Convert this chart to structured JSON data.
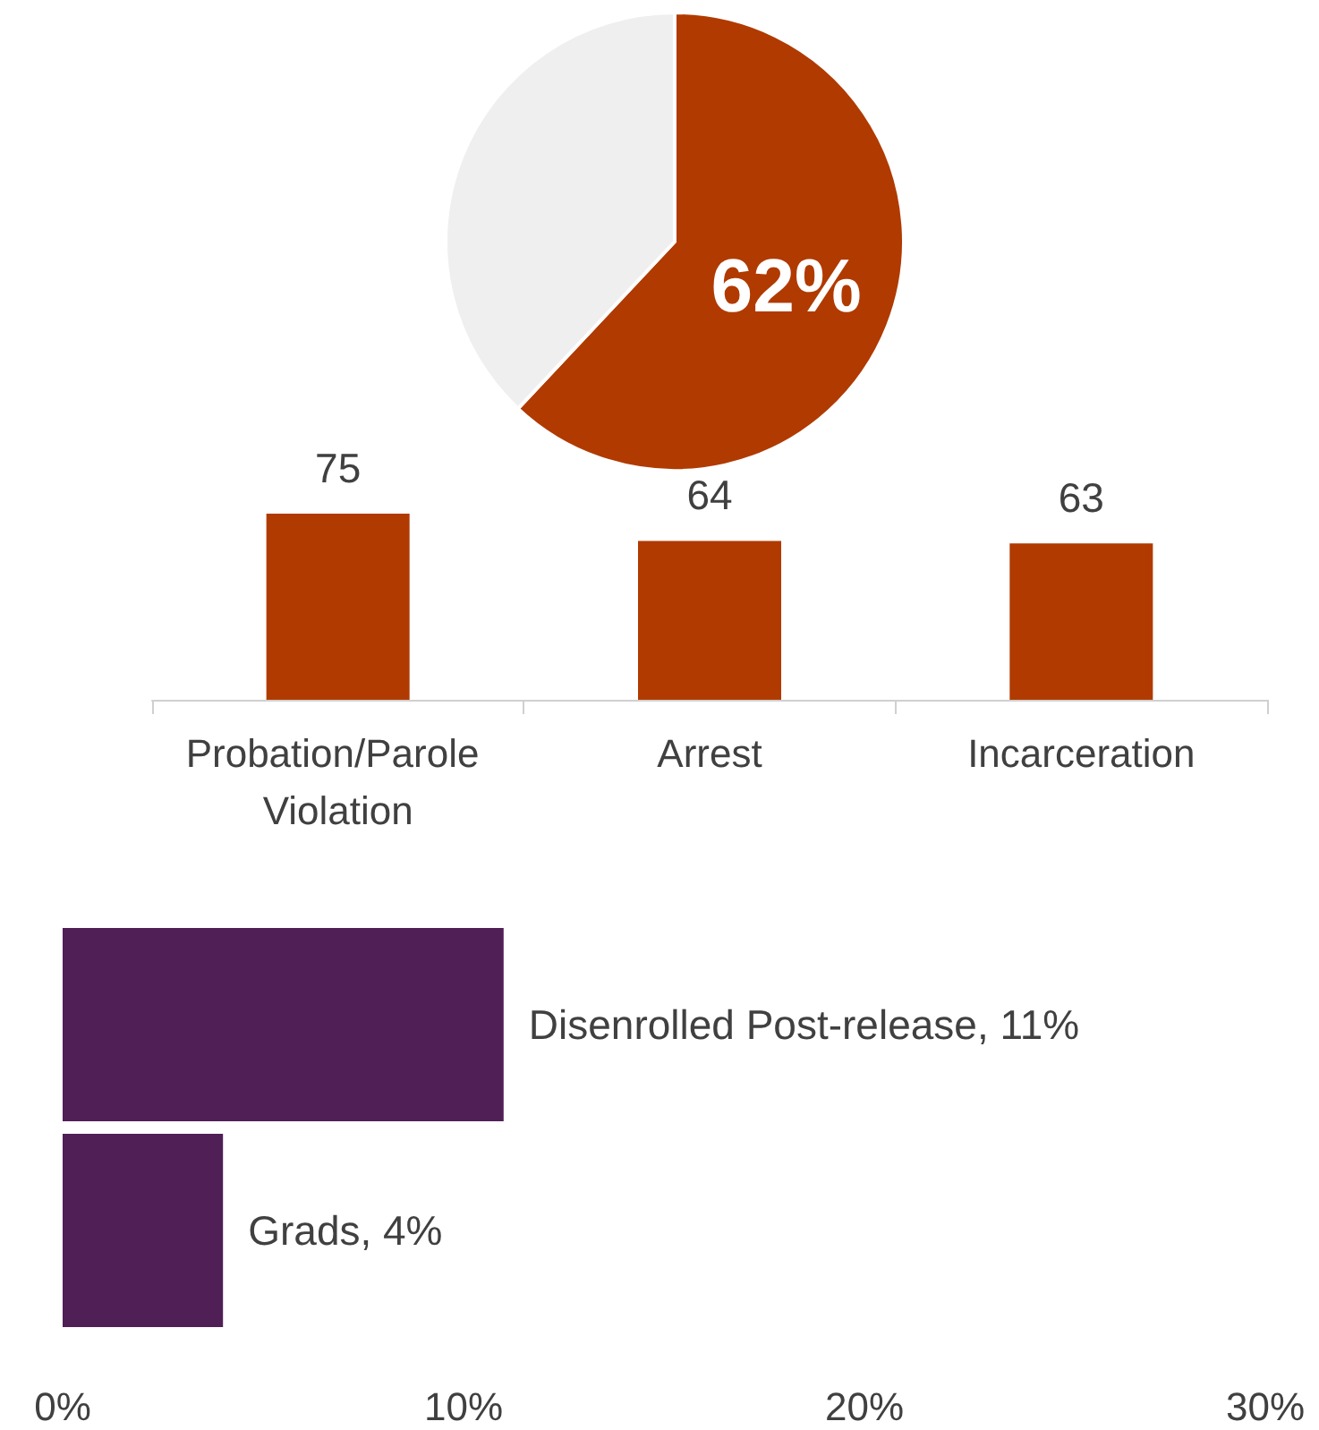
{
  "chart_data": [
    {
      "type": "pie",
      "categories": [
        null,
        null
      ],
      "values": [
        62,
        38
      ],
      "colors": [
        "#b03a00",
        "#efefef"
      ],
      "value_labels": [
        "62%",
        null
      ]
    },
    {
      "type": "bar",
      "categories": [
        "Probation/Parole Violation",
        "Arrest",
        "Incarceration"
      ],
      "values": [
        75,
        64,
        63
      ],
      "color": "#b03a00",
      "data_labels": true,
      "tick_labels": "x"
    },
    {
      "type": "bar",
      "orientation": "horizontal",
      "categories": [
        null,
        null
      ],
      "values": [
        11,
        4
      ],
      "color": "#4f1f56",
      "value_labels": [
        "Disenrolled Post-release, 11%",
        "Grads, 4%"
      ],
      "xlim": [
        0,
        30
      ],
      "xticks": [
        {
          "value": 0,
          "label": "0%"
        },
        {
          "value": 10,
          "label": "10%"
        },
        {
          "value": 20,
          "label": "20%"
        },
        {
          "value": 30,
          "label": "30%"
        }
      ],
      "tick_labels": "x"
    }
  ]
}
